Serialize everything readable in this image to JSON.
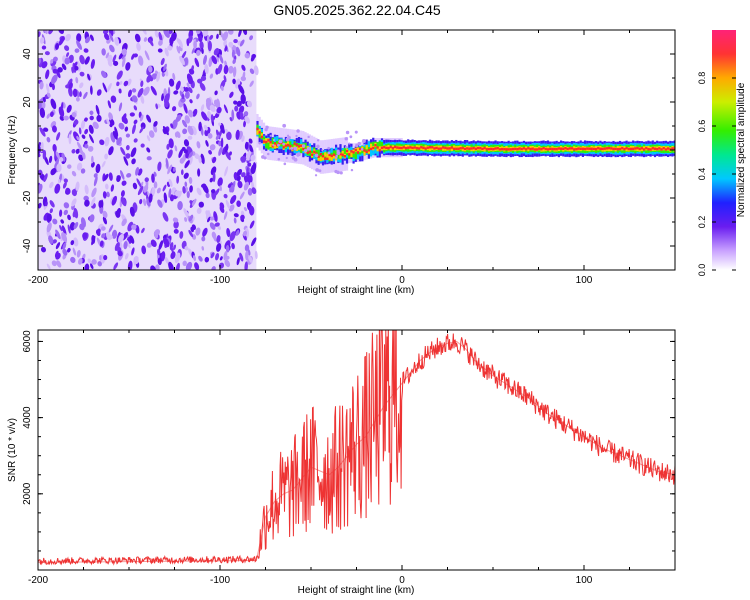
{
  "title": "GN05.2025.362.22.04.C45",
  "colors": {
    "spectrogram_noise": "#6a1df0",
    "spectrogram_band": "#ff2a2a",
    "snr_line": "#ee3333",
    "axis": "#000000"
  },
  "chart_data": [
    {
      "type": "heatmap",
      "panel": "spectrogram",
      "xlabel": "Height of straight line (km)",
      "ylabel": "Frequency (Hz)",
      "xlim": [
        -200,
        150
      ],
      "ylim": [
        -50,
        50
      ],
      "xticks": [
        -200,
        -100,
        0,
        100
      ],
      "yticks": [
        -40,
        -20,
        0,
        20,
        40
      ],
      "xtick_labels": [
        "-200",
        "-100",
        "0",
        "100"
      ],
      "ytick_labels": [
        "-40",
        "-20",
        "0",
        "20",
        "40"
      ],
      "noise_region_x": [
        -200,
        -80
      ],
      "signal_onset_x": -80,
      "signal_track": [
        {
          "x": -80,
          "f": 8
        },
        {
          "x": -75,
          "f": 3
        },
        {
          "x": -65,
          "f": 2
        },
        {
          "x": -55,
          "f": 1
        },
        {
          "x": -45,
          "f": -3
        },
        {
          "x": -35,
          "f": -2
        },
        {
          "x": -25,
          "f": -1
        },
        {
          "x": -15,
          "f": 1
        },
        {
          "x": 0,
          "f": 1
        },
        {
          "x": 50,
          "f": 0.5
        },
        {
          "x": 100,
          "f": 0.5
        },
        {
          "x": 150,
          "f": 0.5
        }
      ],
      "colorbar": {
        "label": "Normalized spectral amplitude",
        "range": [
          0,
          1
        ],
        "ticks": [
          0,
          0.2,
          0.4,
          0.6,
          0.8
        ],
        "tick_labels": [
          "0.0",
          "0.2",
          "0.4",
          "0.6",
          "0.8"
        ]
      }
    },
    {
      "type": "line",
      "panel": "snr",
      "xlabel": "Height of straight line (km)",
      "ylabel": "SNR (10 * v/v)",
      "xlim": [
        -200,
        150
      ],
      "ylim": [
        0,
        6300
      ],
      "xticks": [
        -200,
        -100,
        0,
        100
      ],
      "yticks": [
        2000,
        4000,
        6000
      ],
      "xtick_labels": [
        "-200",
        "-100",
        "0",
        "100"
      ],
      "ytick_labels": [
        "2000",
        "4000",
        "6000"
      ],
      "series": [
        {
          "name": "SNR",
          "x": [
            -200,
            -150,
            -100,
            -80,
            -75,
            -70,
            -65,
            -60,
            -55,
            -50,
            -45,
            -40,
            -35,
            -30,
            -25,
            -20,
            -15,
            -10,
            -5,
            0,
            5,
            10,
            15,
            20,
            25,
            30,
            35,
            40,
            50,
            60,
            70,
            80,
            90,
            100,
            110,
            120,
            130,
            140,
            150
          ],
          "values": [
            200,
            220,
            240,
            250,
            1400,
            1800,
            2000,
            2100,
            2400,
            2700,
            2600,
            2500,
            2700,
            3000,
            3300,
            3500,
            3900,
            4300,
            4600,
            4900,
            5200,
            5500,
            5700,
            5850,
            5950,
            6000,
            5800,
            5500,
            5100,
            4800,
            4500,
            4100,
            3800,
            3500,
            3200,
            3000,
            2800,
            2600,
            2500
          ]
        }
      ]
    }
  ]
}
